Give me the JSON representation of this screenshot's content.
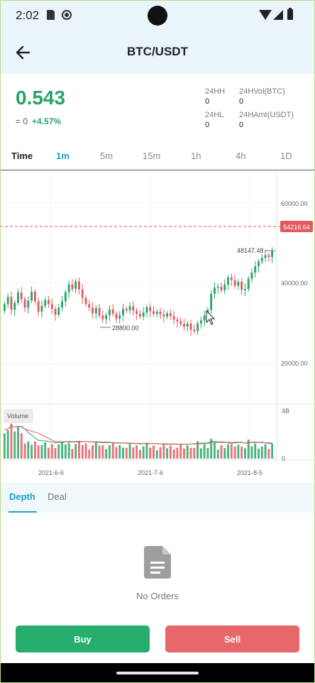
{
  "status_bar": {
    "time": "2:02"
  },
  "app_bar": {
    "title": "BTC/USDT"
  },
  "ticker": {
    "price": "0.543",
    "sub_value": "= 0",
    "change": "+4.57%",
    "stats": [
      {
        "label": "24HH",
        "value": "0"
      },
      {
        "label": "24HVol(BTC)",
        "value": "0"
      },
      {
        "label": "24HL",
        "value": "0"
      },
      {
        "label": "24HAmt(USDT)",
        "value": "0"
      }
    ]
  },
  "intervals": {
    "label": "Time",
    "items": [
      "1m",
      "5m",
      "15m",
      "1h",
      "4h",
      "1D"
    ],
    "active": "1m"
  },
  "chart_data": {
    "type": "candlestick",
    "y_ticks": [
      "60000.00",
      "40000.00",
      "20000.00"
    ],
    "ylim": [
      14000,
      66000
    ],
    "x_ticks": [
      "2021-6-6",
      "2021-7-6",
      "2021-8-5"
    ],
    "current_price": "54216.64",
    "max_label": "48147.48",
    "min_label": "28800.00",
    "volume_label": "Volume",
    "volume_ticks": [
      "4B",
      "0"
    ],
    "colors": {
      "up": "#2aa36a",
      "down": "#e05a5e",
      "ma_fast": "#2aa36a",
      "ma_slow": "#e05a5e"
    },
    "closes": [
      36200,
      37800,
      34900,
      36500,
      38800,
      37300,
      35400,
      37000,
      39000,
      36800,
      34500,
      35800,
      37100,
      36200,
      35100,
      33800,
      35400,
      36800,
      38900,
      40600,
      39600,
      41300,
      39500,
      37600,
      36200,
      35400,
      34100,
      35300,
      33600,
      32800,
      33700,
      35000,
      34000,
      32900,
      33700,
      35100,
      34800,
      35700,
      34700,
      34000,
      33400,
      34300,
      35500,
      34600,
      34000,
      34500,
      33900,
      33400,
      34100,
      33500,
      32700,
      32300,
      31700,
      31100,
      31800,
      30400,
      30100,
      31800,
      32500,
      33600,
      34900,
      38500,
      39900,
      40100,
      39300,
      40600,
      42200,
      41600,
      40300,
      41200,
      39400,
      39600,
      41900,
      43300,
      44700,
      45800,
      46600,
      47200,
      46800,
      48147
    ]
  },
  "book": {
    "tabs": [
      "Depth",
      "Deal"
    ],
    "active": "Depth",
    "empty_text": "No Orders"
  },
  "actions": {
    "buy": "Buy",
    "sell": "Sell"
  }
}
